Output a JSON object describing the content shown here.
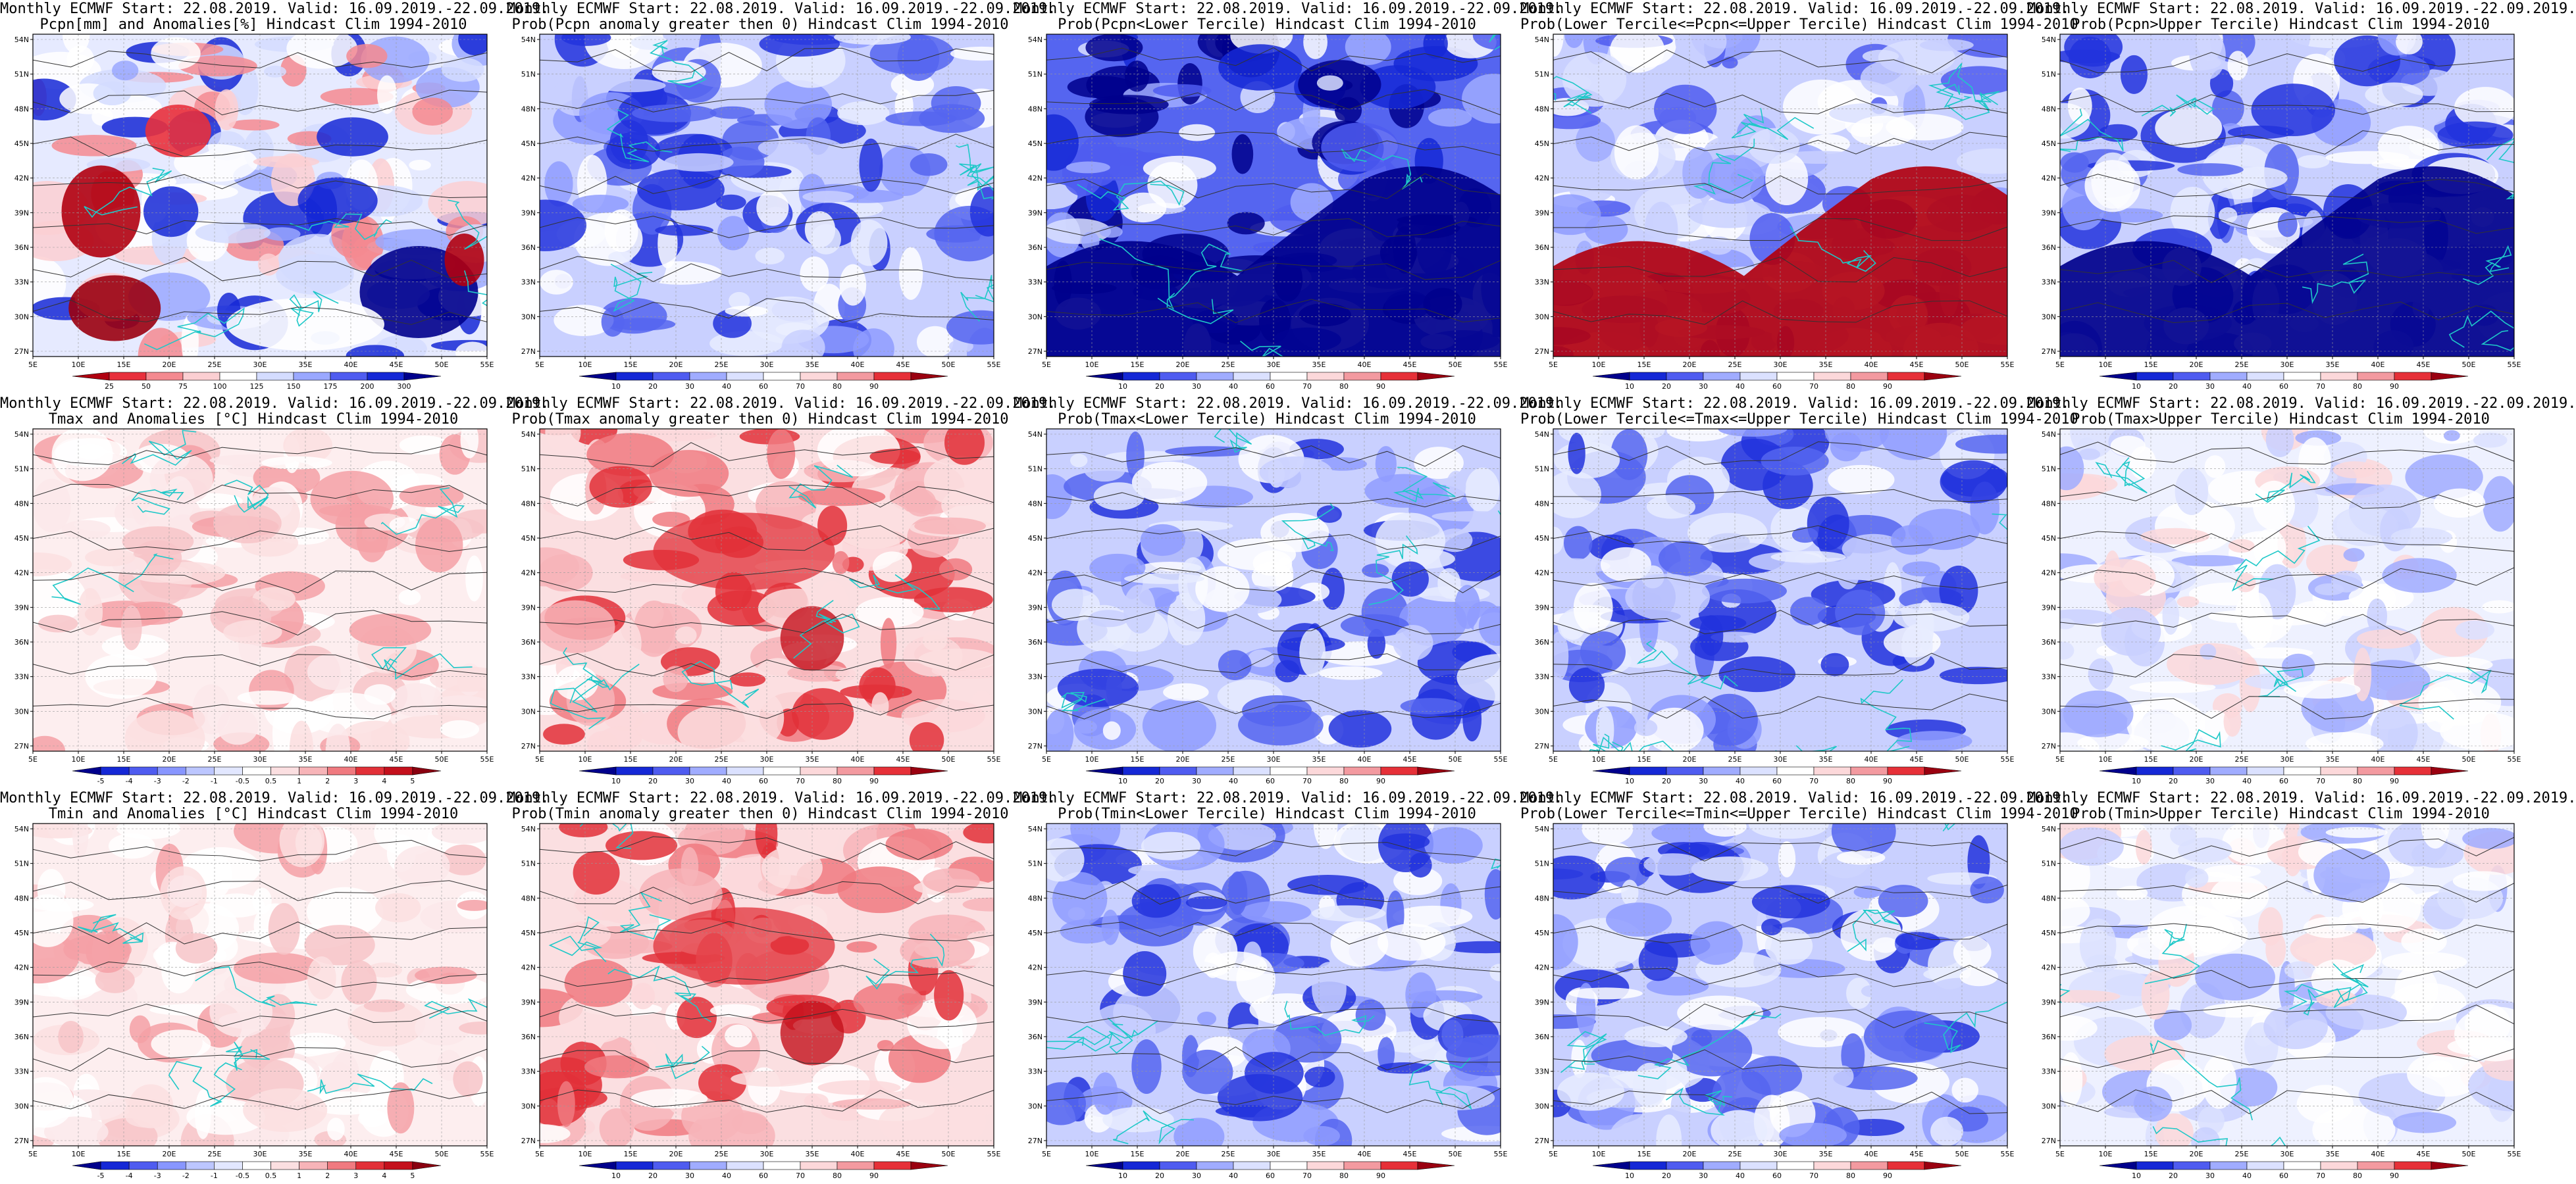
{
  "lon_ticks": [
    "5E",
    "10E",
    "15E",
    "20E",
    "25E",
    "30E",
    "35E",
    "40E",
    "45E",
    "50E",
    "55E"
  ],
  "lat_ticks": [
    "54N",
    "51N",
    "48N",
    "45N",
    "42N",
    "39N",
    "36N",
    "33N",
    "30N",
    "27N"
  ],
  "colorbars": {
    "precip_anom": {
      "labels": [
        "25",
        "50",
        "75",
        "100",
        "125",
        "150",
        "175",
        "200",
        "300"
      ],
      "colors": [
        "#b00010",
        "#e8303c",
        "#f48a90",
        "#fbcfd2",
        "#ffffff",
        "#d4dcff",
        "#9aa8ff",
        "#4f5cf0",
        "#1528d6",
        "#00008c"
      ]
    },
    "temp_anom": {
      "labels": [
        "-5",
        "-4",
        "-3",
        "-2",
        "-1",
        "-0.5",
        "0.5",
        "1",
        "2",
        "3",
        "4",
        "5"
      ],
      "colors": [
        "#00008c",
        "#1528d6",
        "#4f5cf0",
        "#8896ff",
        "#bcc6ff",
        "#e2e7ff",
        "#ffffff",
        "#fbdfe1",
        "#f7b4b8",
        "#f07a80",
        "#e23038",
        "#c4101c",
        "#8a0010"
      ]
    },
    "prob": {
      "labels": [
        "10",
        "20",
        "30",
        "40",
        "60",
        "70",
        "80",
        "90"
      ],
      "colors": [
        "#00008c",
        "#1528d6",
        "#4f5cf0",
        "#a0acff",
        "#dbe1ff",
        "#ffffff",
        "#fcd8da",
        "#f39aa0",
        "#e63038",
        "#9a0010"
      ]
    }
  },
  "panels": [
    {
      "line1": "Monthly ECMWF Start: 22.08.2019. Valid: 16.09.2019.-22.09.2019.",
      "line2": "Pcpn[mm] and Anomalies[%] Hindcast Clim 1994-2010",
      "cbar": "precip_anom",
      "style": "precip_anom"
    },
    {
      "line1": "Monthly ECMWF Start: 22.08.2019. Valid: 16.09.2019.-22.09.2019.",
      "line2": "Prob(Pcpn anomaly greater then 0) Hindcast Clim 1994-2010",
      "cbar": "prob",
      "style": "blue"
    },
    {
      "line1": "Monthly ECMWF Start: 22.08.2019. Valid: 16.09.2019.-22.09.2019.",
      "line2": "Prob(Pcpn<Lower Tercile) Hindcast Clim 1994-2010",
      "cbar": "prob",
      "style": "deepblue"
    },
    {
      "line1": "Monthly ECMWF Start: 22.08.2019. Valid: 16.09.2019.-22.09.2019.",
      "line2": "Prob(Lower Tercile<=Pcpn<=Upper Tercile) Hindcast Clim 1994-2010",
      "cbar": "prob",
      "style": "redsouth"
    },
    {
      "line1": "Monthly ECMWF Start: 22.08.2019. Valid: 16.09.2019.-22.09.2019.",
      "line2": "Prob(Pcpn>Upper Tercile) Hindcast Clim 1994-2010",
      "cbar": "prob",
      "style": "blue"
    },
    {
      "line1": "Monthly ECMWF Start: 22.08.2019. Valid: 16.09.2019.-22.09.2019.",
      "line2": "Tmax and Anomalies [°C] Hindcast Clim 1994-2010",
      "cbar": "temp_anom",
      "style": "lightred"
    },
    {
      "line1": "Monthly ECMWF Start: 22.08.2019. Valid: 16.09.2019.-22.09.2019.",
      "line2": "Prob(Tmax anomaly greater then 0) Hindcast Clim 1994-2010",
      "cbar": "prob",
      "style": "red"
    },
    {
      "line1": "Monthly ECMWF Start: 22.08.2019. Valid: 16.09.2019.-22.09.2019.",
      "line2": "Prob(Tmax<Lower Tercile) Hindcast Clim 1994-2010",
      "cbar": "prob",
      "style": "blue"
    },
    {
      "line1": "Monthly ECMWF Start: 22.08.2019. Valid: 16.09.2019.-22.09.2019.",
      "line2": "Prob(Lower Tercile<=Tmax<=Upper Tercile) Hindcast Clim 1994-2010",
      "cbar": "prob",
      "style": "blue"
    },
    {
      "line1": "Monthly ECMWF Start: 22.08.2019. Valid: 16.09.2019.-22.09.2019.",
      "line2": "Prob(Tmax>Upper Tercile) Hindcast Clim 1994-2010",
      "cbar": "prob",
      "style": "lightblue"
    },
    {
      "line1": "Monthly ECMWF Start: 22.08.2019. Valid: 16.09.2019.-22.09.2019.",
      "line2": "Tmin and Anomalies [°C] Hindcast Clim 1994-2010",
      "cbar": "temp_anom",
      "style": "lightred"
    },
    {
      "line1": "Monthly ECMWF Start: 22.08.2019. Valid: 16.09.2019.-22.09.2019.",
      "line2": "Prob(Tmin anomaly greater then 0) Hindcast Clim 1994-2010",
      "cbar": "prob",
      "style": "red"
    },
    {
      "line1": "Monthly ECMWF Start: 22.08.2019. Valid: 16.09.2019.-22.09.2019.",
      "line2": "Prob(Tmin<Lower Tercile) Hindcast Clim 1994-2010",
      "cbar": "prob",
      "style": "blue"
    },
    {
      "line1": "Monthly ECMWF Start: 22.08.2019. Valid: 16.09.2019.-22.09.2019.",
      "line2": "Prob(Lower Tercile<=Tmin<=Upper Tercile) Hindcast Clim 1994-2010",
      "cbar": "prob",
      "style": "blue"
    },
    {
      "line1": "Monthly ECMWF Start: 22.08.2019. Valid: 16.09.2019.-22.09.2019.",
      "line2": "Prob(Tmin>Upper Tercile) Hindcast Clim 1994-2010",
      "cbar": "prob",
      "style": "lightblue"
    }
  ]
}
